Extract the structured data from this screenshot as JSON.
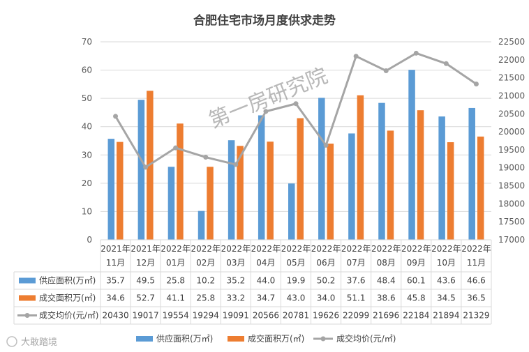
{
  "chart_data": {
    "type": "bar",
    "title": "合肥住宅市场月度供求走势",
    "categories": [
      [
        "2021年",
        "11月"
      ],
      [
        "2021年",
        "12月"
      ],
      [
        "2022年",
        "01月"
      ],
      [
        "2022年",
        "02月"
      ],
      [
        "2022年",
        "03月"
      ],
      [
        "2022年",
        "04月"
      ],
      [
        "2022年",
        "05月"
      ],
      [
        "2022年",
        "06月"
      ],
      [
        "2022年",
        "07月"
      ],
      [
        "2022年",
        "08月"
      ],
      [
        "2022年",
        "09月"
      ],
      [
        "2022年",
        "10月"
      ],
      [
        "2022年",
        "11月"
      ]
    ],
    "series": [
      {
        "name": "供应面积(万㎡)",
        "type": "bar",
        "axis": "left",
        "color": "#5b9bd5",
        "values": [
          35.7,
          49.5,
          25.8,
          10.2,
          35.2,
          44.0,
          19.9,
          50.2,
          37.6,
          48.4,
          60.1,
          43.6,
          46.6
        ]
      },
      {
        "name": "成交面积万(㎡)",
        "type": "bar",
        "axis": "left",
        "color": "#ed7d31",
        "values": [
          34.6,
          52.7,
          41.1,
          25.8,
          33.2,
          34.7,
          43.0,
          34.0,
          51.1,
          38.6,
          45.8,
          34.5,
          36.5
        ]
      },
      {
        "name": "成交均价(元/㎡)",
        "type": "line",
        "axis": "right",
        "color": "#a5a5a5",
        "values": [
          20430,
          19017,
          19554,
          19294,
          19091,
          20566,
          20781,
          19626,
          22099,
          21696,
          22184,
          21894,
          21329
        ]
      }
    ],
    "left_axis": {
      "min": 0,
      "max": 70,
      "step": 10
    },
    "right_axis": {
      "min": 17000,
      "max": 22500,
      "step": 500
    },
    "legend_position": "bottom",
    "data_table": true
  },
  "watermark": "第一房研究院",
  "source_mark": "大敢踏境"
}
